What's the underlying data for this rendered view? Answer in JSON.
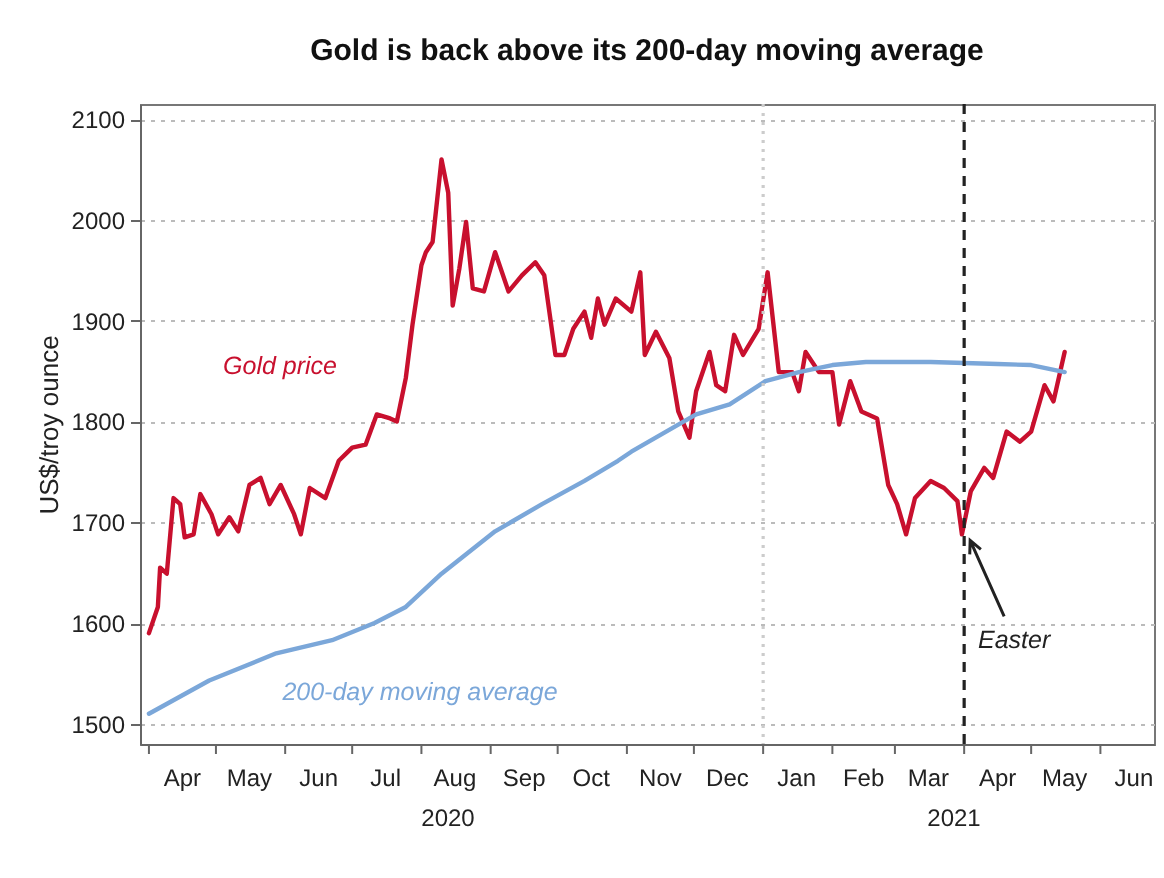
{
  "chart_data": {
    "type": "line",
    "title": "Gold is back above its 200-day moving average",
    "ylabel": "US$/troy ounce",
    "series": [
      {
        "name": "Gold price",
        "color": "#c8102e",
        "x": [
          "2020-04-01",
          "2020-04-05",
          "2020-04-06",
          "2020-04-09",
          "2020-04-12",
          "2020-04-15",
          "2020-04-17",
          "2020-04-21",
          "2020-04-24",
          "2020-04-29",
          "2020-05-02",
          "2020-05-07",
          "2020-05-11",
          "2020-05-16",
          "2020-05-21",
          "2020-05-25",
          "2020-05-30",
          "2020-06-05",
          "2020-06-08",
          "2020-06-12",
          "2020-06-19",
          "2020-06-25",
          "2020-07-01",
          "2020-07-07",
          "2020-07-12",
          "2020-07-18",
          "2020-07-21",
          "2020-07-25",
          "2020-07-28",
          "2020-08-01",
          "2020-08-03",
          "2020-08-06",
          "2020-08-10",
          "2020-08-13",
          "2020-08-15",
          "2020-08-18",
          "2020-08-21",
          "2020-08-24",
          "2020-08-29",
          "2020-09-03",
          "2020-09-09",
          "2020-09-15",
          "2020-09-21",
          "2020-09-25",
          "2020-09-30",
          "2020-10-04",
          "2020-10-08",
          "2020-10-13",
          "2020-10-16",
          "2020-10-19",
          "2020-10-22",
          "2020-10-27",
          "2020-11-03",
          "2020-11-07",
          "2020-11-09",
          "2020-11-14",
          "2020-11-20",
          "2020-11-24",
          "2020-11-29",
          "2020-12-02",
          "2020-12-08",
          "2020-12-11",
          "2020-12-15",
          "2020-12-19",
          "2020-12-23",
          "2020-12-30",
          "2021-01-03",
          "2021-01-08",
          "2021-01-14",
          "2021-01-17",
          "2021-01-20",
          "2021-01-26",
          "2021-02-01",
          "2021-02-04",
          "2021-02-09",
          "2021-02-14",
          "2021-02-21",
          "2021-02-26",
          "2021-03-02",
          "2021-03-06",
          "2021-03-10",
          "2021-03-17",
          "2021-03-23",
          "2021-03-29",
          "2021-03-31",
          "2021-04-04",
          "2021-04-10",
          "2021-04-14",
          "2021-04-20",
          "2021-04-26",
          "2021-05-01",
          "2021-05-07",
          "2021-05-11",
          "2021-05-16"
        ],
        "values": [
          1590,
          1616,
          1655,
          1649,
          1724,
          1718,
          1685,
          1688,
          1728,
          1708,
          1688,
          1705,
          1691,
          1737,
          1744,
          1718,
          1737,
          1708,
          1688,
          1734,
          1724,
          1761,
          1774,
          1777,
          1807,
          1803,
          1800,
          1843,
          1896,
          1955,
          1968,
          1978,
          2060,
          2027,
          1915,
          1952,
          1998,
          1932,
          1929,
          1968,
          1929,
          1945,
          1958,
          1945,
          1866,
          1866,
          1892,
          1909,
          1883,
          1922,
          1896,
          1922,
          1909,
          1948,
          1866,
          1889,
          1863,
          1810,
          1784,
          1830,
          1869,
          1836,
          1830,
          1886,
          1866,
          1892,
          1948,
          1849,
          1849,
          1830,
          1869,
          1849,
          1849,
          1797,
          1840,
          1810,
          1803,
          1737,
          1718,
          1688,
          1724,
          1741,
          1734,
          1721,
          1688,
          1731,
          1754,
          1744,
          1790,
          1780,
          1790,
          1836,
          1820,
          1869
        ]
      },
      {
        "name": "200-day moving average",
        "color": "#7ba7d9",
        "x": [
          "2020-04-01",
          "2020-04-28",
          "2020-05-28",
          "2020-06-22",
          "2020-07-11",
          "2020-07-25",
          "2020-08-10",
          "2020-09-03",
          "2020-09-24",
          "2020-10-13",
          "2020-10-28",
          "2020-11-03",
          "2020-12-02",
          "2020-12-17",
          "2021-01-02",
          "2021-01-17",
          "2021-02-01",
          "2021-02-16",
          "2021-03-17",
          "2021-04-16",
          "2021-05-01",
          "2021-05-16"
        ],
        "values": [
          1510,
          1543,
          1570,
          1583,
          1600,
          1616,
          1649,
          1691,
          1718,
          1741,
          1761,
          1770,
          1807,
          1817,
          1840,
          1849,
          1856,
          1859,
          1859,
          1857,
          1856,
          1849
        ]
      }
    ],
    "xlim": [
      "2020-03-28",
      "2021-06-25"
    ],
    "xticks": [
      {
        "value": "2020-04-01",
        "label": null
      },
      {
        "value": "2020-04-16",
        "label": "Apr"
      },
      {
        "value": "2020-05-01",
        "label": null
      },
      {
        "value": "2020-05-16",
        "label": "May"
      },
      {
        "value": "2020-06-01",
        "label": null
      },
      {
        "value": "2020-06-16",
        "label": "Jun"
      },
      {
        "value": "2020-07-01",
        "label": null
      },
      {
        "value": "2020-07-16",
        "label": "Jul"
      },
      {
        "value": "2020-08-01",
        "label": null
      },
      {
        "value": "2020-08-16",
        "label": "Aug"
      },
      {
        "value": "2020-09-01",
        "label": null
      },
      {
        "value": "2020-09-16",
        "label": "Sep"
      },
      {
        "value": "2020-10-01",
        "label": null
      },
      {
        "value": "2020-10-16",
        "label": "Oct"
      },
      {
        "value": "2020-11-01",
        "label": null
      },
      {
        "value": "2020-11-16",
        "label": "Nov"
      },
      {
        "value": "2020-12-01",
        "label": null
      },
      {
        "value": "2020-12-16",
        "label": "Dec"
      },
      {
        "value": "2021-01-01",
        "label": null
      },
      {
        "value": "2021-01-16",
        "label": "Jan"
      },
      {
        "value": "2021-02-01",
        "label": null
      },
      {
        "value": "2021-02-15",
        "label": "Feb"
      },
      {
        "value": "2021-03-01",
        "label": null
      },
      {
        "value": "2021-03-16",
        "label": "Mar"
      },
      {
        "value": "2021-04-01",
        "label": null
      },
      {
        "value": "2021-04-16",
        "label": "Apr"
      },
      {
        "value": "2021-05-01",
        "label": null
      },
      {
        "value": "2021-05-16",
        "label": "May"
      },
      {
        "value": "2021-06-01",
        "label": null
      },
      {
        "value": "2021-06-16",
        "label": "Jun"
      }
    ],
    "ylim": [
      1480,
      2115
    ],
    "yticks": [
      1500,
      1600,
      1700,
      1800,
      1900,
      2000,
      2100
    ],
    "grid": "y",
    "ref_lines": [
      {
        "axis": "x",
        "value": "2021-01-01",
        "color": "#cccccc",
        "line_style": "dotted"
      },
      {
        "axis": "x",
        "value": "2021-04-01",
        "color": "#222222",
        "line_style": "dashed"
      }
    ],
    "annotations": [
      {
        "text": "Easter",
        "x": "2021-04-01",
        "y": 1688
      },
      "2020",
      "2021"
    ]
  }
}
